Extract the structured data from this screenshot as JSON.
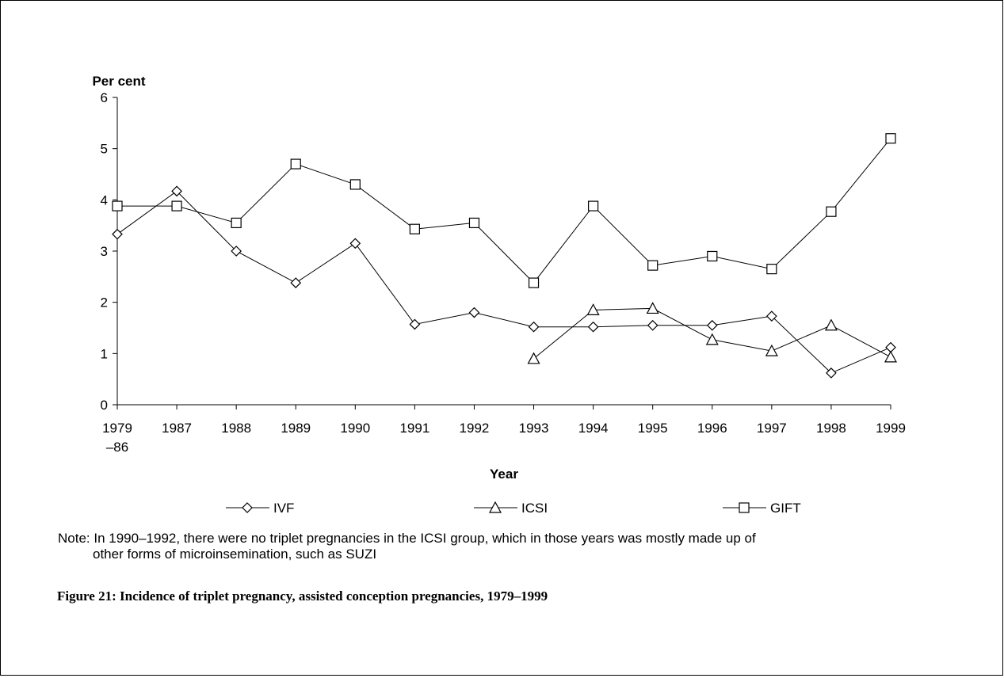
{
  "chart_data": {
    "type": "line",
    "y_label": "Per cent",
    "x_label": "Year",
    "categories": [
      "1979\n–86",
      "1987",
      "1988",
      "1989",
      "1990",
      "1991",
      "1992",
      "1993",
      "1994",
      "1995",
      "1996",
      "1997",
      "1998",
      "1999"
    ],
    "series": [
      {
        "name": "IVF",
        "color": "#000000",
        "marker": "diamond",
        "values": [
          3.33,
          4.17,
          3.0,
          2.38,
          3.15,
          1.57,
          1.8,
          1.52,
          1.52,
          1.55,
          1.55,
          1.73,
          0.62,
          1.12
        ]
      },
      {
        "name": "ICSI",
        "color": "#000000",
        "marker": "triangle",
        "values": [
          null,
          null,
          null,
          null,
          null,
          null,
          null,
          0.9,
          1.85,
          1.88,
          1.27,
          1.05,
          1.55,
          0.93
        ]
      },
      {
        "name": "GIFT",
        "color": "#000000",
        "marker": "square",
        "values": [
          3.88,
          3.88,
          3.55,
          4.7,
          4.3,
          3.43,
          3.55,
          2.38,
          3.88,
          2.72,
          2.9,
          2.65,
          3.77,
          5.2
        ]
      }
    ],
    "ylim": [
      0,
      6
    ],
    "yticks": [
      0,
      1,
      2,
      3,
      4,
      5,
      6
    ],
    "grid": false,
    "legend": "bottom",
    "note": [
      "Note: In 1990–1992, there were no triplet pregnancies in the ICSI group, which in those years was mostly made up of",
      "other forms of microinsemination, such as SUZI"
    ],
    "caption": "Figure 21:  Incidence of triplet pregnancy, assisted conception pregnancies, 1979–1999"
  }
}
